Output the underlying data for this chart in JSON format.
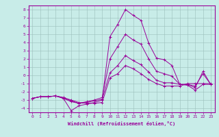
{
  "xlabel": "Windchill (Refroidissement éolien,°C)",
  "ylabel": "",
  "xlim": [
    -0.5,
    23.5
  ],
  "ylim": [
    -4.5,
    8.5
  ],
  "xticks": [
    0,
    1,
    2,
    3,
    4,
    5,
    6,
    7,
    8,
    9,
    10,
    11,
    12,
    13,
    14,
    15,
    16,
    17,
    18,
    19,
    20,
    21,
    22,
    23
  ],
  "yticks": [
    -4,
    -3,
    -2,
    -1,
    0,
    1,
    2,
    3,
    4,
    5,
    6,
    7,
    8
  ],
  "background_color": "#c8ece8",
  "grid_color": "#9bbfbb",
  "line_color": "#990099",
  "series": [
    {
      "x": [
        0,
        1,
        2,
        3,
        4,
        5,
        6,
        7,
        8,
        9,
        10,
        11,
        12,
        13,
        14,
        15,
        16,
        17,
        18,
        19,
        20,
        21,
        22,
        23
      ],
      "y": [
        -2.8,
        -2.6,
        -2.6,
        -2.5,
        -2.7,
        -3.0,
        -3.3,
        -3.4,
        -3.4,
        -3.3,
        -0.3,
        0.2,
        1.2,
        0.8,
        0.2,
        -0.5,
        -1.0,
        -1.3,
        -1.3,
        -1.3,
        -1.0,
        -1.0,
        -1.0,
        -1.0
      ]
    },
    {
      "x": [
        0,
        1,
        2,
        3,
        4,
        5,
        6,
        7,
        8,
        9,
        10,
        11,
        12,
        13,
        14,
        15,
        16,
        17,
        18,
        19,
        20,
        21,
        22,
        23
      ],
      "y": [
        -2.8,
        -2.6,
        -2.6,
        -2.5,
        -2.8,
        -4.3,
        -3.7,
        -3.5,
        -3.3,
        -3.0,
        4.7,
        6.2,
        8.0,
        7.3,
        6.7,
        3.9,
        2.1,
        1.9,
        1.2,
        -1.1,
        -1.2,
        -1.8,
        -1.1,
        -1.1
      ]
    },
    {
      "x": [
        0,
        1,
        2,
        3,
        4,
        5,
        6,
        7,
        8,
        9,
        10,
        11,
        12,
        13,
        14,
        15,
        16,
        17,
        18,
        19,
        20,
        21,
        22,
        23
      ],
      "y": [
        -2.8,
        -2.6,
        -2.6,
        -2.5,
        -2.8,
        -3.2,
        -3.4,
        -3.3,
        -3.1,
        -2.9,
        0.3,
        1.2,
        2.4,
        1.8,
        1.3,
        0.4,
        -0.6,
        -0.9,
        -0.9,
        -1.1,
        -1.1,
        -1.3,
        0.2,
        -1.1
      ]
    },
    {
      "x": [
        0,
        1,
        2,
        3,
        4,
        5,
        6,
        7,
        8,
        9,
        10,
        11,
        12,
        13,
        14,
        15,
        16,
        17,
        18,
        19,
        20,
        21,
        22,
        23
      ],
      "y": [
        -2.8,
        -2.6,
        -2.6,
        -2.5,
        -2.7,
        -3.1,
        -3.4,
        -3.2,
        -3.0,
        -2.7,
        2.0,
        3.5,
        5.0,
        4.3,
        3.8,
        2.0,
        0.5,
        0.2,
        -0.1,
        -1.1,
        -1.1,
        -1.5,
        0.5,
        -1.1
      ]
    }
  ]
}
